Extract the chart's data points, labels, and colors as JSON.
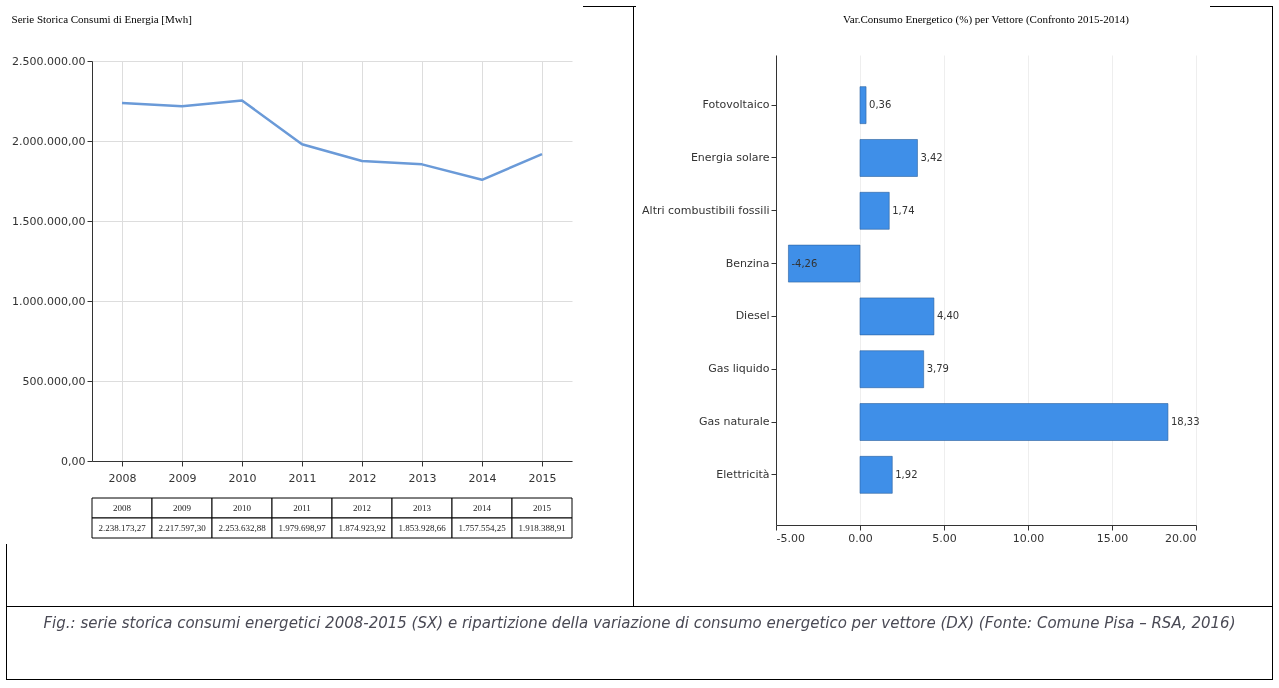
{
  "chart_data": [
    {
      "type": "line",
      "title": "Serie Storica Consumi di Energia [Mwh]",
      "categories": [
        "2008",
        "2009",
        "2010",
        "2011",
        "2012",
        "2013",
        "2014",
        "2015"
      ],
      "series": [
        {
          "color": "#6a9ad8",
          "values": [
            2238173.27,
            2217597.3,
            2253632.88,
            1979698.97,
            1874923.92,
            1853928.66,
            1757554.25,
            1918388.91
          ],
          "value_labels": [
            "2.238.173,27",
            "2.217.597,30",
            "2.253.632,88",
            "1.979.698,97",
            "1.874.923,92",
            "1.853.928,66",
            "1.757.554,25",
            "1.918.388,91"
          ]
        }
      ],
      "ylim": [
        0,
        2500000
      ],
      "yticks": [
        {
          "value": 0,
          "label": "0,00"
        },
        {
          "value": 500000,
          "label": "500.000,00"
        },
        {
          "value": 1000000,
          "label": "1.000.000,00"
        },
        {
          "value": 1500000,
          "label": "1.500.000,00"
        },
        {
          "value": 2000000,
          "label": "2.000.000,00"
        },
        {
          "value": 2500000,
          "label": "2.500.000.00"
        }
      ],
      "grid": true,
      "annotations": [
        "Fig.: serie storica consumi energetici 2008-2015 (SX) e ripartizione della variazione di consumo energetico per vettore (DX) (Fonte: Comune Pisa – RSA, 2016)"
      ]
    },
    {
      "type": "bar",
      "orientation": "horizontal",
      "title": "Var.Consumo Energetico (%) per Vettore (Confronto 2015-2014)",
      "categories": [
        "Fotovoltaico",
        "Energia solare",
        "Altri combustibili fossili",
        "Benzina",
        "Diesel",
        "Gas liquido",
        "Gas naturale",
        "Elettricità"
      ],
      "series": [
        {
          "color": "#3f8fe8",
          "values": [
            0.36,
            3.42,
            1.74,
            -4.26,
            4.4,
            3.79,
            18.33,
            1.92
          ],
          "value_labels": [
            "0,36",
            "3,42",
            "1,74",
            "-4,26",
            "4,40",
            "3,79",
            "18,33",
            "1,92"
          ]
        }
      ],
      "xlim": [
        -5,
        20
      ],
      "xticks": [
        {
          "value": -5,
          "label": "-5.00"
        },
        {
          "value": 0,
          "label": "0.00"
        },
        {
          "value": 5,
          "label": "5.00"
        },
        {
          "value": 10,
          "label": "10.00"
        },
        {
          "value": 15,
          "label": "15.00"
        },
        {
          "value": 20,
          "label": "20.00"
        }
      ],
      "grid": "x"
    }
  ]
}
